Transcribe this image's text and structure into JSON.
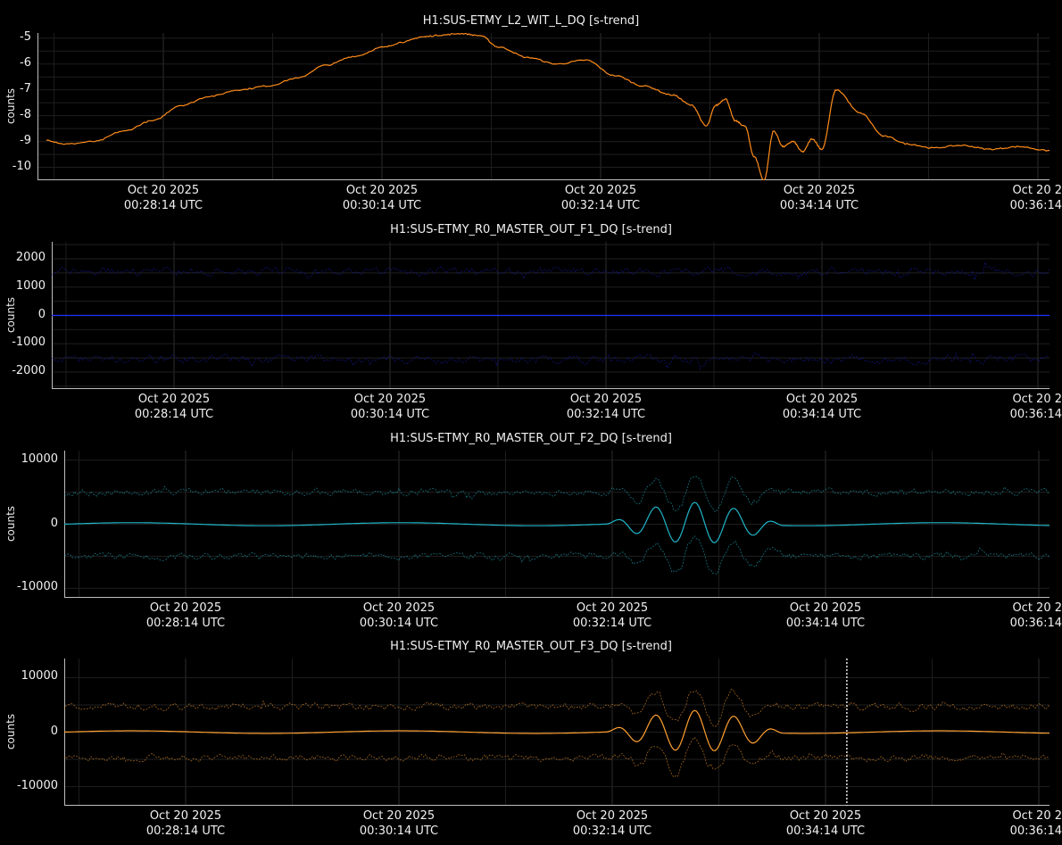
{
  "chart_data": [
    {
      "type": "line",
      "title": "H1:SUS-ETMY_L2_WIT_L_DQ [s-trend]",
      "ylabel": "counts",
      "ylim": [
        -10.5,
        -4.8
      ],
      "yticks": [
        -5,
        -6,
        -7,
        -8,
        -9,
        -10
      ],
      "xticks": [
        {
          "date": "Oct 20 2025",
          "time": "00:28:14 UTC"
        },
        {
          "date": "Oct 20 2025",
          "time": "00:30:14 UTC"
        },
        {
          "date": "Oct 20 2025",
          "time": "00:32:14 UTC"
        },
        {
          "date": "Oct 20 2025",
          "time": "00:34:14 UTC"
        },
        {
          "date": "Oct 20 2",
          "time": "00:36:14"
        }
      ],
      "xrange_min": [
        -1.1,
        7.1
      ],
      "grid": true,
      "color": "#ff8c1a",
      "series": [
        {
          "x": [
            -1.1,
            -0.9,
            -0.6,
            -0.3,
            0.0,
            0.3,
            0.6,
            0.9,
            1.2,
            1.5,
            1.8,
            2.1,
            2.4,
            2.6,
            2.8,
            3.0,
            3.2,
            3.4,
            3.6,
            3.9,
            4.2,
            4.5,
            4.8,
            5.1,
            5.4,
            5.6,
            5.75,
            5.85,
            5.95,
            6.05,
            6.15,
            6.25,
            6.35,
            6.45,
            6.55,
            6.65,
            6.75,
            6.85,
            6.95,
            7.1,
            7.35,
            7.6,
            7.85,
            8.1,
            8.4,
            8.7,
            9.0,
            9.3,
            9.6,
            9.9,
            10.2
          ],
          "values": [
            -8.95,
            -9.1,
            -9.0,
            -8.6,
            -8.2,
            -7.6,
            -7.25,
            -7.0,
            -6.85,
            -6.55,
            -6.05,
            -5.7,
            -5.35,
            -5.15,
            -4.95,
            -4.88,
            -4.82,
            -4.9,
            -5.35,
            -5.75,
            -6.0,
            -5.85,
            -6.45,
            -6.85,
            -7.2,
            -7.6,
            -8.4,
            -7.6,
            -7.35,
            -8.2,
            -8.4,
            -9.6,
            -10.5,
            -8.6,
            -9.2,
            -9.0,
            -9.4,
            -8.9,
            -9.3,
            -7.0,
            -7.9,
            -8.8,
            -9.1,
            -9.25,
            -9.15,
            -9.3,
            -9.2,
            -9.35,
            -9.55,
            -9.25,
            -9.25
          ]
        }
      ]
    },
    {
      "type": "line",
      "title": "H1:SUS-ETMY_R0_MASTER_OUT_F1_DQ [s-trend]",
      "ylabel": "counts",
      "ylim": [
        -2600,
        2600
      ],
      "yticks": [
        2000,
        1000,
        0,
        -1000,
        -2000
      ],
      "xticks": [
        {
          "date": "Oct 20 2025",
          "time": "00:28:14 UTC"
        },
        {
          "date": "Oct 20 2025",
          "time": "00:30:14 UTC"
        },
        {
          "date": "Oct 20 2025",
          "time": "00:32:14 UTC"
        },
        {
          "date": "Oct 20 2025",
          "time": "00:34:14 UTC"
        },
        {
          "date": "Oct 20 2",
          "time": "00:36:14"
        }
      ],
      "grid": true,
      "color": "#2233ff",
      "series": [
        {
          "name": "max",
          "level": 1550,
          "noise": 300
        },
        {
          "name": "mean",
          "level": 0,
          "noise": 0
        },
        {
          "name": "min",
          "level": -1550,
          "noise": 300
        }
      ]
    },
    {
      "type": "line",
      "title": "H1:SUS-ETMY_R0_MASTER_OUT_F2_DQ [s-trend]",
      "ylabel": "counts",
      "ylim": [
        -11500,
        11500
      ],
      "yticks": [
        10000,
        0,
        -10000
      ],
      "xticks": [
        {
          "date": "Oct 20 2025",
          "time": "00:28:14 UTC"
        },
        {
          "date": "Oct 20 2025",
          "time": "00:30:14 UTC"
        },
        {
          "date": "Oct 20 2025",
          "time": "00:32:14 UTC"
        },
        {
          "date": "Oct 20 2025",
          "time": "00:34:14 UTC"
        },
        {
          "date": "Oct 20 2",
          "time": "00:36:14"
        }
      ],
      "grid": true,
      "color": "#1fb5c7",
      "series": [
        {
          "name": "max",
          "level": 5000,
          "noise": 1100
        },
        {
          "name": "mean",
          "level": 0,
          "noise": 200
        },
        {
          "name": "min",
          "level": -5000,
          "noise": 1100
        }
      ]
    },
    {
      "type": "line",
      "title": "H1:SUS-ETMY_R0_MASTER_OUT_F3_DQ [s-trend]",
      "ylabel": "counts",
      "ylim": [
        -13500,
        13500
      ],
      "yticks": [
        10000,
        0,
        -10000
      ],
      "xticks": [
        {
          "date": "Oct 20 2025",
          "time": "00:28:14 UTC"
        },
        {
          "date": "Oct 20 2025",
          "time": "00:30:14 UTC"
        },
        {
          "date": "Oct 20 2025",
          "time": "00:32:14 UTC"
        },
        {
          "date": "Oct 20 2025",
          "time": "00:34:14 UTC"
        },
        {
          "date": "Oct 20 2",
          "time": "00:36:14"
        }
      ],
      "grid": true,
      "color": "#ffa030",
      "cursor_at_tick": 3.1,
      "series": [
        {
          "name": "max",
          "level": 4700,
          "noise": 1300
        },
        {
          "name": "mean",
          "level": 0,
          "noise": 200
        },
        {
          "name": "min",
          "level": -4700,
          "noise": 1300
        }
      ]
    }
  ]
}
